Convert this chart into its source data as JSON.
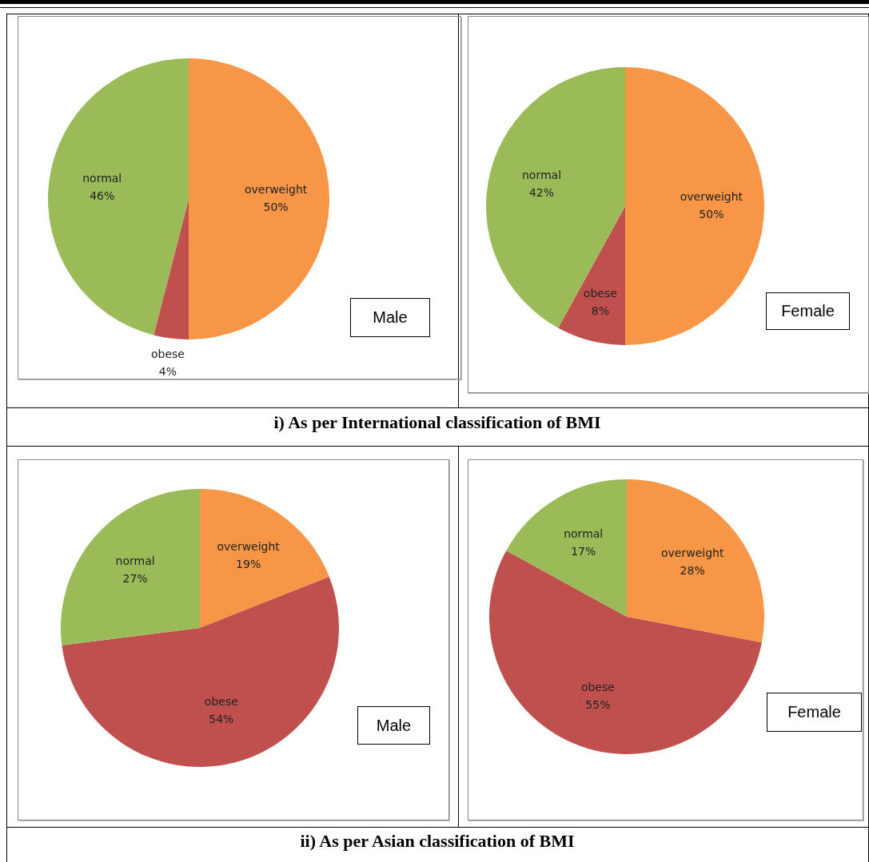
{
  "chart_data": [
    {
      "type": "pie",
      "title": "Male",
      "categories": [
        "overweight",
        "obese",
        "normal"
      ],
      "values": [
        50,
        4,
        46
      ],
      "value_labels": [
        "50%",
        "4%",
        "46%"
      ],
      "colors": [
        "#f79646",
        "#c0504d",
        "#9bbb59"
      ],
      "legend": false,
      "annotations": [
        "i) As per International classification of BMI"
      ]
    },
    {
      "type": "pie",
      "title": "Female",
      "categories": [
        "overweight",
        "obese",
        "normal"
      ],
      "values": [
        50,
        8,
        42
      ],
      "value_labels": [
        "50%",
        "8%",
        "42%"
      ],
      "colors": [
        "#f79646",
        "#c0504d",
        "#9bbb59"
      ],
      "legend": false
    },
    {
      "type": "pie",
      "title": "Male",
      "categories": [
        "overweight",
        "obese",
        "normal"
      ],
      "values": [
        19,
        54,
        27
      ],
      "value_labels": [
        "19%",
        "54%",
        "27%"
      ],
      "colors": [
        "#f79646",
        "#c0504d",
        "#9bbb59"
      ],
      "legend": false,
      "annotations": [
        "ii) As per Asian classification of BMI"
      ]
    },
    {
      "type": "pie",
      "title": "Female",
      "categories": [
        "overweight",
        "obese",
        "normal"
      ],
      "values": [
        28,
        55,
        17
      ],
      "value_labels": [
        "28%",
        "55%",
        "17%"
      ],
      "colors": [
        "#f79646",
        "#c0504d",
        "#9bbb59"
      ],
      "legend": false
    }
  ]
}
